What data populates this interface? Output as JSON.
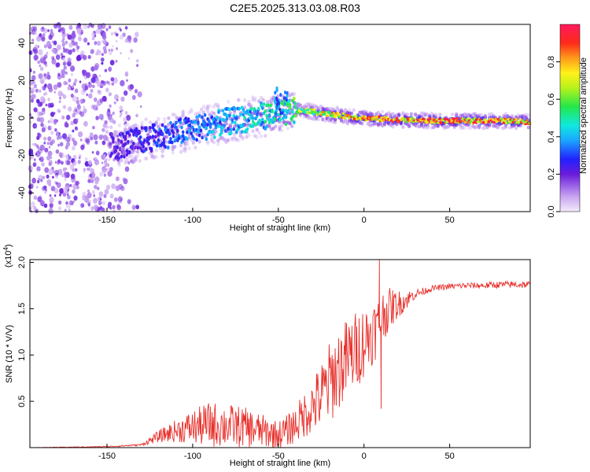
{
  "title": "C2E5.2025.313.03.08.R03",
  "chart_data": [
    {
      "type": "heatmap",
      "name": "spectrogram",
      "xlabel": "Height of straight line (km)",
      "ylabel": "Frequency (Hz)",
      "xlim": [
        -195,
        97
      ],
      "ylim": [
        -50,
        50
      ],
      "x_ticks": [
        -150,
        -100,
        -50,
        0,
        50
      ],
      "y_ticks": [
        -40,
        -20,
        0,
        20,
        40
      ],
      "colorbar": {
        "label": "Normalized spectral amplitude",
        "range": [
          0,
          1
        ],
        "ticks": [
          0.0,
          0.2,
          0.4,
          0.6,
          0.8
        ]
      },
      "ridge": {
        "description_points_x": [
          -145,
          -120,
          -100,
          -80,
          -60,
          -45,
          -35,
          -20,
          0,
          20,
          40,
          60,
          80,
          95
        ],
        "description_points_y": [
          -15,
          -10,
          -6,
          -2,
          1,
          3,
          4,
          2,
          0,
          -1,
          -1.5,
          -1.5,
          -1.5,
          -2
        ],
        "amplitude": [
          0.25,
          0.35,
          0.4,
          0.45,
          0.5,
          0.6,
          0.75,
          0.85,
          0.9,
          0.95,
          0.97,
          0.98,
          0.98,
          0.9
        ]
      }
    },
    {
      "type": "line",
      "name": "snr",
      "xlabel": "Height of straight line (km)",
      "ylabel": "SNR (10 * V/V)",
      "y_multiplier": "(x10^4)",
      "xlim": [
        -195,
        97
      ],
      "ylim": [
        0,
        2.03
      ],
      "x_ticks": [
        -150,
        -100,
        -50,
        0,
        50
      ],
      "y_ticks": [
        0.5,
        1.0,
        1.5,
        2.0
      ],
      "y_tick_labels": [
        "0.5",
        "1.0",
        "1.5",
        "2.0"
      ],
      "color": "#e8312c",
      "baseline": {
        "x": [
          -195,
          -150,
          -130,
          -120,
          -110,
          -100,
          -90,
          -80,
          -70,
          -60,
          -50,
          -45,
          -40,
          -30,
          -25,
          -20,
          -15,
          -10,
          -5,
          0,
          5,
          8,
          10,
          12,
          15,
          20,
          25,
          30,
          40,
          50,
          60,
          70,
          80,
          90,
          97
        ],
        "y": [
          0.0,
          0.01,
          0.03,
          0.12,
          0.18,
          0.22,
          0.25,
          0.24,
          0.22,
          0.18,
          0.14,
          0.18,
          0.25,
          0.45,
          0.55,
          0.7,
          0.85,
          0.95,
          1.05,
          1.15,
          1.25,
          1.3,
          1.4,
          1.45,
          1.5,
          1.55,
          1.6,
          1.66,
          1.72,
          1.74,
          1.75,
          1.75,
          1.76,
          1.76,
          1.76
        ]
      },
      "noise_amplitude": {
        "x": [
          -195,
          -130,
          -110,
          -90,
          -70,
          -50,
          -40,
          -30,
          -20,
          -10,
          0,
          10,
          20,
          30,
          40,
          97
        ],
        "y": [
          0.0,
          0.01,
          0.12,
          0.25,
          0.22,
          0.15,
          0.2,
          0.3,
          0.45,
          0.45,
          0.4,
          0.3,
          0.15,
          0.05,
          0.03,
          0.04
        ]
      },
      "spikes": [
        {
          "x": 9,
          "y": 2.03
        },
        {
          "x": 10,
          "y": 0.42
        }
      ]
    }
  ]
}
